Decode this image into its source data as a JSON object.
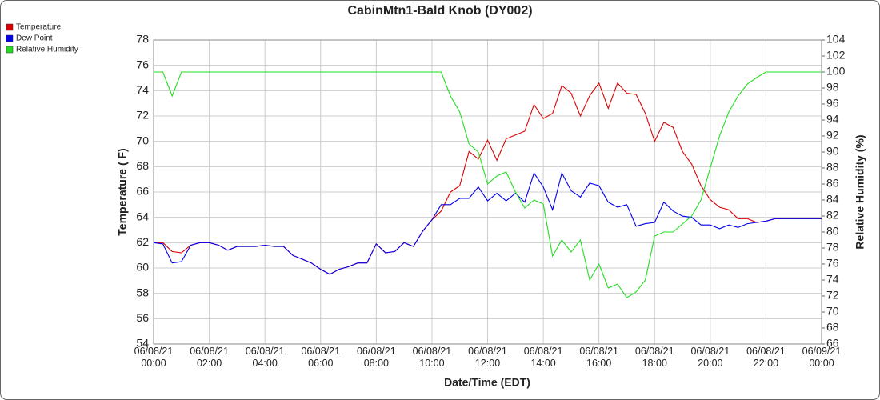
{
  "chart_data": {
    "type": "line",
    "title": "CabinMtn1-Bald Knob (DY002)",
    "xlabel": "Date/Time (EDT)",
    "ylabel": "Temperature ( F)",
    "y2label": "Relative Humidity (%)",
    "x": [
      "06/08/21 00:00",
      "06/08/21 00:20",
      "06/08/21 00:40",
      "06/08/21 01:00",
      "06/08/21 01:20",
      "06/08/21 01:40",
      "06/08/21 02:00",
      "06/08/21 02:20",
      "06/08/21 02:40",
      "06/08/21 03:00",
      "06/08/21 03:20",
      "06/08/21 03:40",
      "06/08/21 04:00",
      "06/08/21 04:20",
      "06/08/21 04:40",
      "06/08/21 05:00",
      "06/08/21 05:20",
      "06/08/21 05:40",
      "06/08/21 06:00",
      "06/08/21 06:20",
      "06/08/21 06:40",
      "06/08/21 07:00",
      "06/08/21 07:20",
      "06/08/21 07:40",
      "06/08/21 08:00",
      "06/08/21 08:20",
      "06/08/21 08:40",
      "06/08/21 09:00",
      "06/08/21 09:20",
      "06/08/21 09:40",
      "06/08/21 10:00",
      "06/08/21 10:20",
      "06/08/21 10:40",
      "06/08/21 11:00",
      "06/08/21 11:20",
      "06/08/21 11:40",
      "06/08/21 12:00",
      "06/08/21 12:20",
      "06/08/21 12:40",
      "06/08/21 13:00",
      "06/08/21 13:20",
      "06/08/21 13:40",
      "06/08/21 14:00",
      "06/08/21 14:20",
      "06/08/21 14:40",
      "06/08/21 15:00",
      "06/08/21 15:20",
      "06/08/21 15:40",
      "06/08/21 16:00",
      "06/08/21 16:20",
      "06/08/21 16:40",
      "06/08/21 17:00",
      "06/08/21 17:20",
      "06/08/21 17:40",
      "06/08/21 18:00",
      "06/08/21 18:20",
      "06/08/21 18:40",
      "06/08/21 19:00",
      "06/08/21 19:20",
      "06/08/21 19:40",
      "06/08/21 20:00",
      "06/08/21 20:20",
      "06/08/21 20:40",
      "06/08/21 21:00",
      "06/08/21 21:20",
      "06/08/21 21:40",
      "06/08/21 22:00",
      "06/08/21 22:20",
      "06/08/21 22:40",
      "06/08/21 23:00",
      "06/08/21 23:20",
      "06/08/21 23:40",
      "06/09/21 00:00"
    ],
    "xlim": [
      "06/08/21 00:00",
      "06/09/21 00:00"
    ],
    "xticks": [
      "06/08/21 00:00",
      "06/08/21 02:00",
      "06/08/21 04:00",
      "06/08/21 06:00",
      "06/08/21 08:00",
      "06/08/21 10:00",
      "06/08/21 12:00",
      "06/08/21 14:00",
      "06/08/21 16:00",
      "06/08/21 18:00",
      "06/08/21 20:00",
      "06/08/21 22:00",
      "06/09/21 00:00"
    ],
    "ylim": [
      54,
      78
    ],
    "yticks": [
      54,
      56,
      58,
      60,
      62,
      64,
      66,
      68,
      70,
      72,
      74,
      76,
      78
    ],
    "y2lim": [
      66,
      104
    ],
    "y2ticks": [
      66,
      68,
      70,
      72,
      74,
      76,
      78,
      80,
      82,
      84,
      86,
      88,
      90,
      92,
      94,
      96,
      98,
      100,
      102,
      104
    ],
    "grid": true,
    "legend": "top-left",
    "series": [
      {
        "name": "Temperature",
        "color": "#dd0000",
        "values": [
          62.0,
          62.0,
          61.3,
          61.2,
          61.8,
          62.0,
          62.0,
          61.8,
          61.4,
          61.7,
          61.7,
          61.7,
          61.8,
          61.7,
          61.7,
          61.0,
          60.7,
          60.4,
          59.9,
          59.5,
          59.9,
          60.1,
          60.4,
          60.4,
          61.9,
          61.2,
          61.3,
          62.0,
          61.7,
          62.9,
          63.8,
          64.5,
          66.0,
          66.5,
          69.2,
          68.6,
          70.1,
          68.5,
          70.2,
          70.5,
          70.8,
          72.9,
          71.8,
          72.2,
          74.4,
          73.8,
          72.0,
          73.6,
          74.6,
          72.6,
          74.6,
          73.8,
          73.7,
          72.2,
          70.0,
          71.5,
          71.1,
          69.2,
          68.2,
          66.5,
          65.4,
          64.8,
          64.6,
          63.9,
          63.9,
          63.6,
          63.7,
          63.9,
          63.9,
          63.9,
          63.9,
          63.9,
          63.9
        ]
      },
      {
        "name": "Dew Point",
        "color": "#0000ee",
        "values": [
          62.0,
          61.9,
          60.4,
          60.5,
          61.8,
          62.0,
          62.0,
          61.8,
          61.4,
          61.7,
          61.7,
          61.7,
          61.8,
          61.7,
          61.7,
          61.0,
          60.7,
          60.4,
          59.9,
          59.5,
          59.9,
          60.1,
          60.4,
          60.4,
          61.9,
          61.2,
          61.3,
          62.0,
          61.7,
          62.9,
          63.8,
          65.0,
          65.0,
          65.5,
          65.5,
          66.4,
          65.3,
          65.9,
          65.3,
          65.9,
          65.2,
          67.5,
          66.4,
          64.6,
          67.5,
          66.1,
          65.6,
          66.7,
          66.5,
          65.2,
          64.8,
          65.0,
          63.3,
          63.5,
          63.6,
          65.2,
          64.5,
          64.1,
          64.0,
          63.4,
          63.4,
          63.1,
          63.4,
          63.2,
          63.5,
          63.6,
          63.7,
          63.9,
          63.9,
          63.9,
          63.9,
          63.9,
          63.9
        ]
      },
      {
        "name": "Relative Humidity",
        "color": "#22dd22",
        "axis": "y2",
        "values": [
          100,
          100,
          97,
          100,
          100,
          100,
          100,
          100,
          100,
          100,
          100,
          100,
          100,
          100,
          100,
          100,
          100,
          100,
          100,
          100,
          100,
          100,
          100,
          100,
          100,
          100,
          100,
          100,
          100,
          100,
          100,
          100,
          97,
          95,
          91,
          90,
          86,
          87,
          87.5,
          85,
          83,
          84,
          83.5,
          77,
          79,
          77.5,
          79,
          74,
          76,
          73,
          73.5,
          71.8,
          72.5,
          74,
          79.5,
          80,
          80,
          81,
          82,
          84,
          88,
          92,
          95,
          97,
          98.5,
          99.3,
          100,
          100,
          100,
          100,
          100,
          100,
          100
        ]
      }
    ]
  }
}
